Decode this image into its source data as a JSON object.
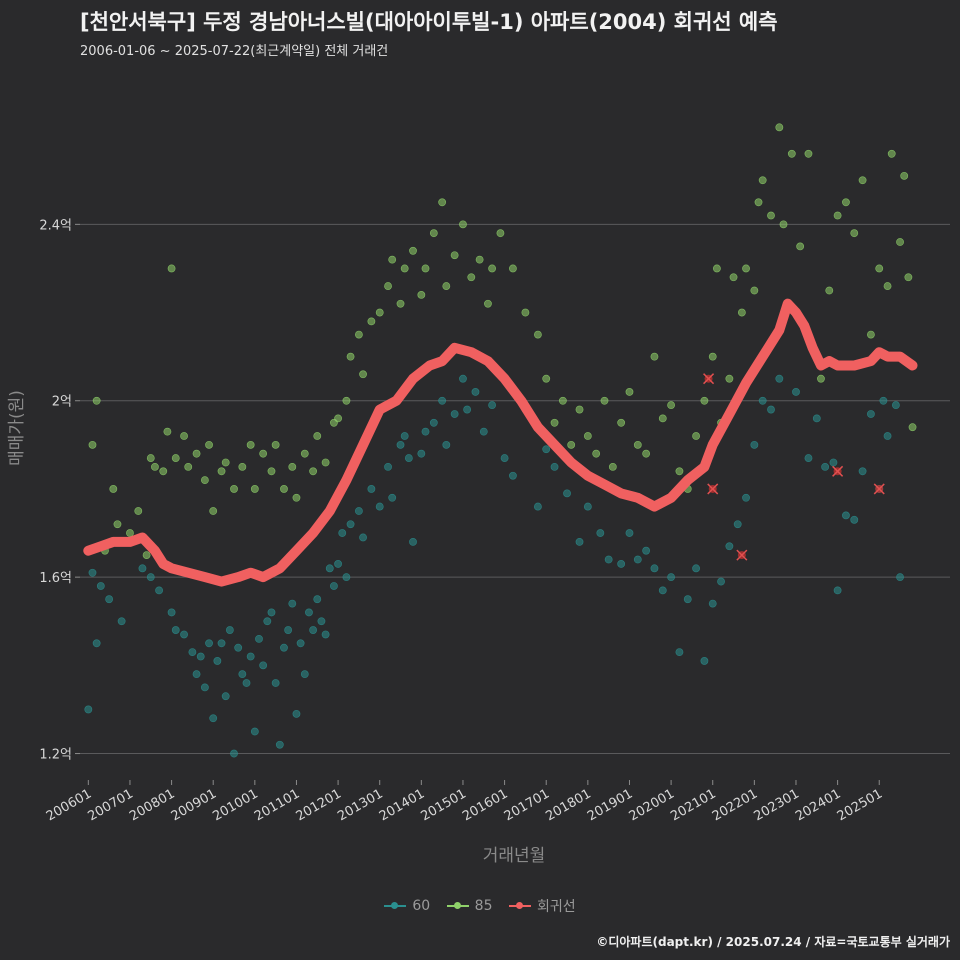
{
  "header": {
    "title": "[천안서북구] 두정 경남아너스빌(대아아이투빌-1) 아파트(2004) 회귀선 예측",
    "subtitle": "2006-01-06 ~ 2025-07-22(최근계약일) 전체 거래건"
  },
  "footer": {
    "credit": "©디아파트(dapt.kr) / 2025.07.24 / 자료=국토교통부 실거래가"
  },
  "legend": [
    {
      "label": "60",
      "color": "#2a8f8f"
    },
    {
      "label": "85",
      "color": "#8fd16a"
    },
    {
      "label": "회귀선",
      "color": "#f06060"
    }
  ],
  "chart_data": {
    "type": "scatter",
    "title": "[천안서북구] 두정 경남아너스빌(대아아이투빌-1) 아파트(2004) 회귀선 예측",
    "xlabel": "거래년월",
    "ylabel": "매매가(원)",
    "xlim": [
      2005.8,
      2026.7
    ],
    "ylim": [
      1.14,
      2.75
    ],
    "x_ticks": [
      2006,
      2007,
      2008,
      2009,
      2010,
      2011,
      2012,
      2013,
      2014,
      2015,
      2016,
      2017,
      2018,
      2019,
      2020,
      2021,
      2022,
      2023,
      2024,
      2025
    ],
    "x_tick_labels": [
      "200601",
      "200701",
      "200801",
      "200901",
      "201001",
      "201101",
      "201201",
      "201301",
      "201401",
      "201501",
      "201601",
      "201701",
      "201801",
      "201901",
      "202001",
      "202101",
      "202201",
      "202301",
      "202401",
      "202501"
    ],
    "y_ticks": [
      1.2,
      1.6,
      2.0,
      2.4
    ],
    "y_tick_labels": [
      "1.2억",
      "1.6억",
      "2억",
      "2.4억"
    ],
    "series": [
      {
        "name": "60",
        "color": "#2a8f8f",
        "points": [
          [
            2006.0,
            1.3
          ],
          [
            2006.1,
            1.61
          ],
          [
            2006.2,
            1.45
          ],
          [
            2006.3,
            1.58
          ],
          [
            2006.5,
            1.55
          ],
          [
            2006.8,
            1.5
          ],
          [
            2007.3,
            1.62
          ],
          [
            2007.5,
            1.6
          ],
          [
            2007.7,
            1.57
          ],
          [
            2008.0,
            1.52
          ],
          [
            2008.1,
            1.48
          ],
          [
            2008.3,
            1.47
          ],
          [
            2008.5,
            1.43
          ],
          [
            2008.6,
            1.38
          ],
          [
            2008.7,
            1.42
          ],
          [
            2008.8,
            1.35
          ],
          [
            2008.9,
            1.45
          ],
          [
            2009.0,
            1.28
          ],
          [
            2009.1,
            1.41
          ],
          [
            2009.2,
            1.45
          ],
          [
            2009.3,
            1.33
          ],
          [
            2009.4,
            1.48
          ],
          [
            2009.5,
            1.2
          ],
          [
            2009.6,
            1.44
          ],
          [
            2009.7,
            1.38
          ],
          [
            2009.8,
            1.36
          ],
          [
            2009.9,
            1.42
          ],
          [
            2010.0,
            1.25
          ],
          [
            2010.1,
            1.46
          ],
          [
            2010.2,
            1.4
          ],
          [
            2010.3,
            1.5
          ],
          [
            2010.4,
            1.52
          ],
          [
            2010.5,
            1.36
          ],
          [
            2010.6,
            1.22
          ],
          [
            2010.7,
            1.44
          ],
          [
            2010.8,
            1.48
          ],
          [
            2010.9,
            1.54
          ],
          [
            2011.0,
            1.29
          ],
          [
            2011.1,
            1.45
          ],
          [
            2011.2,
            1.38
          ],
          [
            2011.3,
            1.52
          ],
          [
            2011.4,
            1.48
          ],
          [
            2011.5,
            1.55
          ],
          [
            2011.6,
            1.5
          ],
          [
            2011.7,
            1.47
          ],
          [
            2011.8,
            1.62
          ],
          [
            2011.9,
            1.58
          ],
          [
            2012.0,
            1.63
          ],
          [
            2012.1,
            1.7
          ],
          [
            2012.2,
            1.6
          ],
          [
            2012.3,
            1.72
          ],
          [
            2012.5,
            1.75
          ],
          [
            2012.6,
            1.69
          ],
          [
            2012.8,
            1.8
          ],
          [
            2013.0,
            1.76
          ],
          [
            2013.2,
            1.85
          ],
          [
            2013.3,
            1.78
          ],
          [
            2013.5,
            1.9
          ],
          [
            2013.6,
            1.92
          ],
          [
            2013.7,
            1.87
          ],
          [
            2013.8,
            1.68
          ],
          [
            2014.0,
            1.88
          ],
          [
            2014.1,
            1.93
          ],
          [
            2014.3,
            1.95
          ],
          [
            2014.5,
            2.0
          ],
          [
            2014.6,
            1.9
          ],
          [
            2014.8,
            1.97
          ],
          [
            2015.0,
            2.05
          ],
          [
            2015.1,
            1.98
          ],
          [
            2015.3,
            2.02
          ],
          [
            2015.5,
            1.93
          ],
          [
            2015.7,
            1.99
          ],
          [
            2016.0,
            1.87
          ],
          [
            2016.2,
            1.83
          ],
          [
            2016.5,
            1.98
          ],
          [
            2016.8,
            1.76
          ],
          [
            2017.0,
            1.89
          ],
          [
            2017.2,
            1.85
          ],
          [
            2017.5,
            1.79
          ],
          [
            2017.8,
            1.68
          ],
          [
            2018.0,
            1.76
          ],
          [
            2018.3,
            1.7
          ],
          [
            2018.5,
            1.64
          ],
          [
            2018.8,
            1.63
          ],
          [
            2019.0,
            1.7
          ],
          [
            2019.2,
            1.64
          ],
          [
            2019.4,
            1.66
          ],
          [
            2019.6,
            1.62
          ],
          [
            2019.8,
            1.57
          ],
          [
            2020.0,
            1.6
          ],
          [
            2020.2,
            1.43
          ],
          [
            2020.4,
            1.55
          ],
          [
            2020.6,
            1.62
          ],
          [
            2020.8,
            1.41
          ],
          [
            2021.0,
            1.54
          ],
          [
            2021.2,
            1.59
          ],
          [
            2021.4,
            1.67
          ],
          [
            2021.6,
            1.72
          ],
          [
            2021.8,
            1.78
          ],
          [
            2022.0,
            1.9
          ],
          [
            2022.2,
            2.0
          ],
          [
            2022.4,
            1.98
          ],
          [
            2022.6,
            2.05
          ],
          [
            2023.0,
            2.02
          ],
          [
            2023.3,
            1.87
          ],
          [
            2023.5,
            1.96
          ],
          [
            2023.7,
            1.85
          ],
          [
            2023.9,
            1.86
          ],
          [
            2024.0,
            1.57
          ],
          [
            2024.2,
            1.74
          ],
          [
            2024.4,
            1.73
          ],
          [
            2024.6,
            1.84
          ],
          [
            2024.8,
            1.97
          ],
          [
            2025.0,
            1.8
          ],
          [
            2025.1,
            2.0
          ],
          [
            2025.2,
            1.92
          ],
          [
            2025.4,
            1.99
          ],
          [
            2025.5,
            1.6
          ]
        ]
      },
      {
        "name": "85",
        "color": "#8fd16a",
        "points": [
          [
            2006.1,
            1.9
          ],
          [
            2006.2,
            2.0
          ],
          [
            2006.4,
            1.66
          ],
          [
            2006.6,
            1.8
          ],
          [
            2006.7,
            1.72
          ],
          [
            2006.9,
            1.68
          ],
          [
            2007.0,
            1.7
          ],
          [
            2007.2,
            1.75
          ],
          [
            2007.4,
            1.65
          ],
          [
            2007.5,
            1.87
          ],
          [
            2007.6,
            1.85
          ],
          [
            2007.8,
            1.84
          ],
          [
            2007.9,
            1.93
          ],
          [
            2008.0,
            2.3
          ],
          [
            2008.1,
            1.87
          ],
          [
            2008.3,
            1.92
          ],
          [
            2008.4,
            1.85
          ],
          [
            2008.6,
            1.88
          ],
          [
            2008.8,
            1.82
          ],
          [
            2008.9,
            1.9
          ],
          [
            2009.0,
            1.75
          ],
          [
            2009.2,
            1.84
          ],
          [
            2009.3,
            1.86
          ],
          [
            2009.5,
            1.8
          ],
          [
            2009.7,
            1.85
          ],
          [
            2009.9,
            1.9
          ],
          [
            2010.0,
            1.8
          ],
          [
            2010.2,
            1.88
          ],
          [
            2010.4,
            1.84
          ],
          [
            2010.5,
            1.9
          ],
          [
            2010.7,
            1.8
          ],
          [
            2010.9,
            1.85
          ],
          [
            2011.0,
            1.78
          ],
          [
            2011.2,
            1.88
          ],
          [
            2011.4,
            1.84
          ],
          [
            2011.5,
            1.92
          ],
          [
            2011.7,
            1.86
          ],
          [
            2011.9,
            1.95
          ],
          [
            2012.0,
            1.96
          ],
          [
            2012.2,
            2.0
          ],
          [
            2012.3,
            2.1
          ],
          [
            2012.5,
            2.15
          ],
          [
            2012.6,
            2.06
          ],
          [
            2012.8,
            2.18
          ],
          [
            2013.0,
            2.2
          ],
          [
            2013.2,
            2.26
          ],
          [
            2013.3,
            2.32
          ],
          [
            2013.5,
            2.22
          ],
          [
            2013.6,
            2.3
          ],
          [
            2013.8,
            2.34
          ],
          [
            2014.0,
            2.24
          ],
          [
            2014.1,
            2.3
          ],
          [
            2014.3,
            2.38
          ],
          [
            2014.5,
            2.45
          ],
          [
            2014.6,
            2.26
          ],
          [
            2014.8,
            2.33
          ],
          [
            2015.0,
            2.4
          ],
          [
            2015.2,
            2.28
          ],
          [
            2015.4,
            2.32
          ],
          [
            2015.6,
            2.22
          ],
          [
            2015.7,
            2.3
          ],
          [
            2015.9,
            2.38
          ],
          [
            2016.2,
            2.3
          ],
          [
            2016.5,
            2.2
          ],
          [
            2016.8,
            2.15
          ],
          [
            2017.0,
            2.05
          ],
          [
            2017.2,
            1.95
          ],
          [
            2017.4,
            2.0
          ],
          [
            2017.6,
            1.9
          ],
          [
            2017.8,
            1.98
          ],
          [
            2018.0,
            1.92
          ],
          [
            2018.2,
            1.88
          ],
          [
            2018.4,
            2.0
          ],
          [
            2018.6,
            1.85
          ],
          [
            2018.8,
            1.95
          ],
          [
            2019.0,
            2.02
          ],
          [
            2019.2,
            1.9
          ],
          [
            2019.4,
            1.88
          ],
          [
            2019.6,
            2.1
          ],
          [
            2019.8,
            1.96
          ],
          [
            2020.0,
            1.99
          ],
          [
            2020.2,
            1.84
          ],
          [
            2020.4,
            1.8
          ],
          [
            2020.6,
            1.92
          ],
          [
            2020.8,
            2.0
          ],
          [
            2021.0,
            2.1
          ],
          [
            2021.1,
            2.3
          ],
          [
            2021.2,
            1.95
          ],
          [
            2021.4,
            2.05
          ],
          [
            2021.5,
            2.28
          ],
          [
            2021.7,
            2.2
          ],
          [
            2021.8,
            2.3
          ],
          [
            2022.0,
            2.25
          ],
          [
            2022.1,
            2.45
          ],
          [
            2022.2,
            2.5
          ],
          [
            2022.4,
            2.42
          ],
          [
            2022.6,
            2.62
          ],
          [
            2022.7,
            2.4
          ],
          [
            2022.9,
            2.56
          ],
          [
            2023.1,
            2.35
          ],
          [
            2023.3,
            2.56
          ],
          [
            2023.6,
            2.05
          ],
          [
            2023.8,
            2.25
          ],
          [
            2024.0,
            2.42
          ],
          [
            2024.2,
            2.45
          ],
          [
            2024.4,
            2.38
          ],
          [
            2024.6,
            2.5
          ],
          [
            2024.8,
            2.15
          ],
          [
            2025.0,
            2.3
          ],
          [
            2025.2,
            2.26
          ],
          [
            2025.3,
            2.56
          ],
          [
            2025.5,
            2.36
          ],
          [
            2025.6,
            2.51
          ],
          [
            2025.7,
            2.28
          ],
          [
            2025.8,
            1.94
          ]
        ]
      }
    ],
    "regression": {
      "name": "회귀선",
      "color": "#f06060",
      "x": [
        2006.0,
        2006.3,
        2006.6,
        2007.0,
        2007.3,
        2007.6,
        2007.8,
        2008.0,
        2008.4,
        2008.8,
        2009.2,
        2009.6,
        2009.9,
        2010.2,
        2010.6,
        2011.0,
        2011.4,
        2011.8,
        2012.2,
        2012.6,
        2013.0,
        2013.4,
        2013.8,
        2014.2,
        2014.5,
        2014.8,
        2015.2,
        2015.6,
        2016.0,
        2016.4,
        2016.8,
        2017.2,
        2017.6,
        2018.0,
        2018.4,
        2018.8,
        2019.2,
        2019.6,
        2020.0,
        2020.4,
        2020.8,
        2021.0,
        2021.4,
        2021.8,
        2022.2,
        2022.6,
        2022.8,
        2023.0,
        2023.2,
        2023.4,
        2023.6,
        2023.8,
        2024.0,
        2024.4,
        2024.8,
        2025.0,
        2025.2,
        2025.5,
        2025.8
      ],
      "y": [
        1.66,
        1.67,
        1.68,
        1.68,
        1.69,
        1.66,
        1.63,
        1.62,
        1.61,
        1.6,
        1.59,
        1.6,
        1.61,
        1.6,
        1.62,
        1.66,
        1.7,
        1.75,
        1.82,
        1.9,
        1.98,
        2.0,
        2.05,
        2.08,
        2.09,
        2.12,
        2.11,
        2.09,
        2.05,
        2.0,
        1.94,
        1.9,
        1.86,
        1.83,
        1.81,
        1.79,
        1.78,
        1.76,
        1.78,
        1.82,
        1.85,
        1.9,
        1.97,
        2.04,
        2.1,
        2.16,
        2.22,
        2.2,
        2.17,
        2.12,
        2.08,
        2.09,
        2.08,
        2.08,
        2.09,
        2.11,
        2.1,
        2.1,
        2.08
      ]
    },
    "highlighted": [
      [
        2020.9,
        2.05
      ],
      [
        2021.0,
        1.8
      ],
      [
        2021.7,
        1.65
      ],
      [
        2024.0,
        1.84
      ],
      [
        2025.0,
        1.8
      ]
    ]
  }
}
